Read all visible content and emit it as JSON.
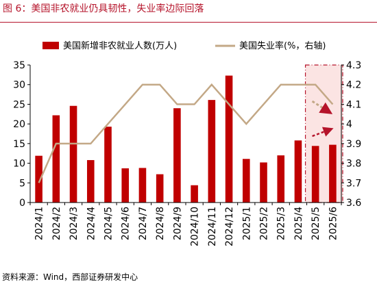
{
  "title": "图 6：美国非农就业仍具韧性，失业率边际回落",
  "source": "资料来源：Wind，西部证券研发中心",
  "colors": {
    "bar": "#c00000",
    "line": "#c3a886",
    "accent": "#b5132a",
    "highlight": "#fbe4e3"
  },
  "chart_data": {
    "type": "bar+line",
    "categories": [
      "2024/1",
      "2024/2",
      "2024/3",
      "2024/4",
      "2024/5",
      "2024/6",
      "2024/7",
      "2024/8",
      "2024/9",
      "2024/10",
      "2024/11",
      "2024/12",
      "2025/1",
      "2025/2",
      "2025/3",
      "2025/4",
      "2025/5",
      "2025/6"
    ],
    "series": [
      {
        "name": "美国新增非农就业人数(万人)",
        "type": "bar",
        "axis": "left",
        "values": [
          11.9,
          22.2,
          24.6,
          10.8,
          19.3,
          8.7,
          8.8,
          7.2,
          24.0,
          4.4,
          26.1,
          32.3,
          11.1,
          10.2,
          12.0,
          15.8,
          14.4,
          14.7
        ]
      },
      {
        "name": "美国失业率(%，右轴)",
        "type": "line",
        "axis": "right",
        "values": [
          3.7,
          3.9,
          3.9,
          3.9,
          4.0,
          4.1,
          4.2,
          4.2,
          4.1,
          4.1,
          4.2,
          4.1,
          4.0,
          4.1,
          4.2,
          4.2,
          4.2,
          4.1
        ]
      }
    ],
    "y_left": {
      "ylim": [
        0,
        35
      ],
      "ticks": [
        "0",
        "5",
        "10",
        "15",
        "20",
        "25",
        "30",
        "35"
      ]
    },
    "y_right": {
      "ylim": [
        3.6,
        4.3
      ],
      "ticks": [
        "3.6",
        "3.7",
        "3.8",
        "3.9",
        "4",
        "4.1",
        "4.2",
        "4.3"
      ]
    },
    "legend": "top",
    "grid": false,
    "highlight_categories": [
      "2025/5",
      "2025/6"
    ]
  }
}
